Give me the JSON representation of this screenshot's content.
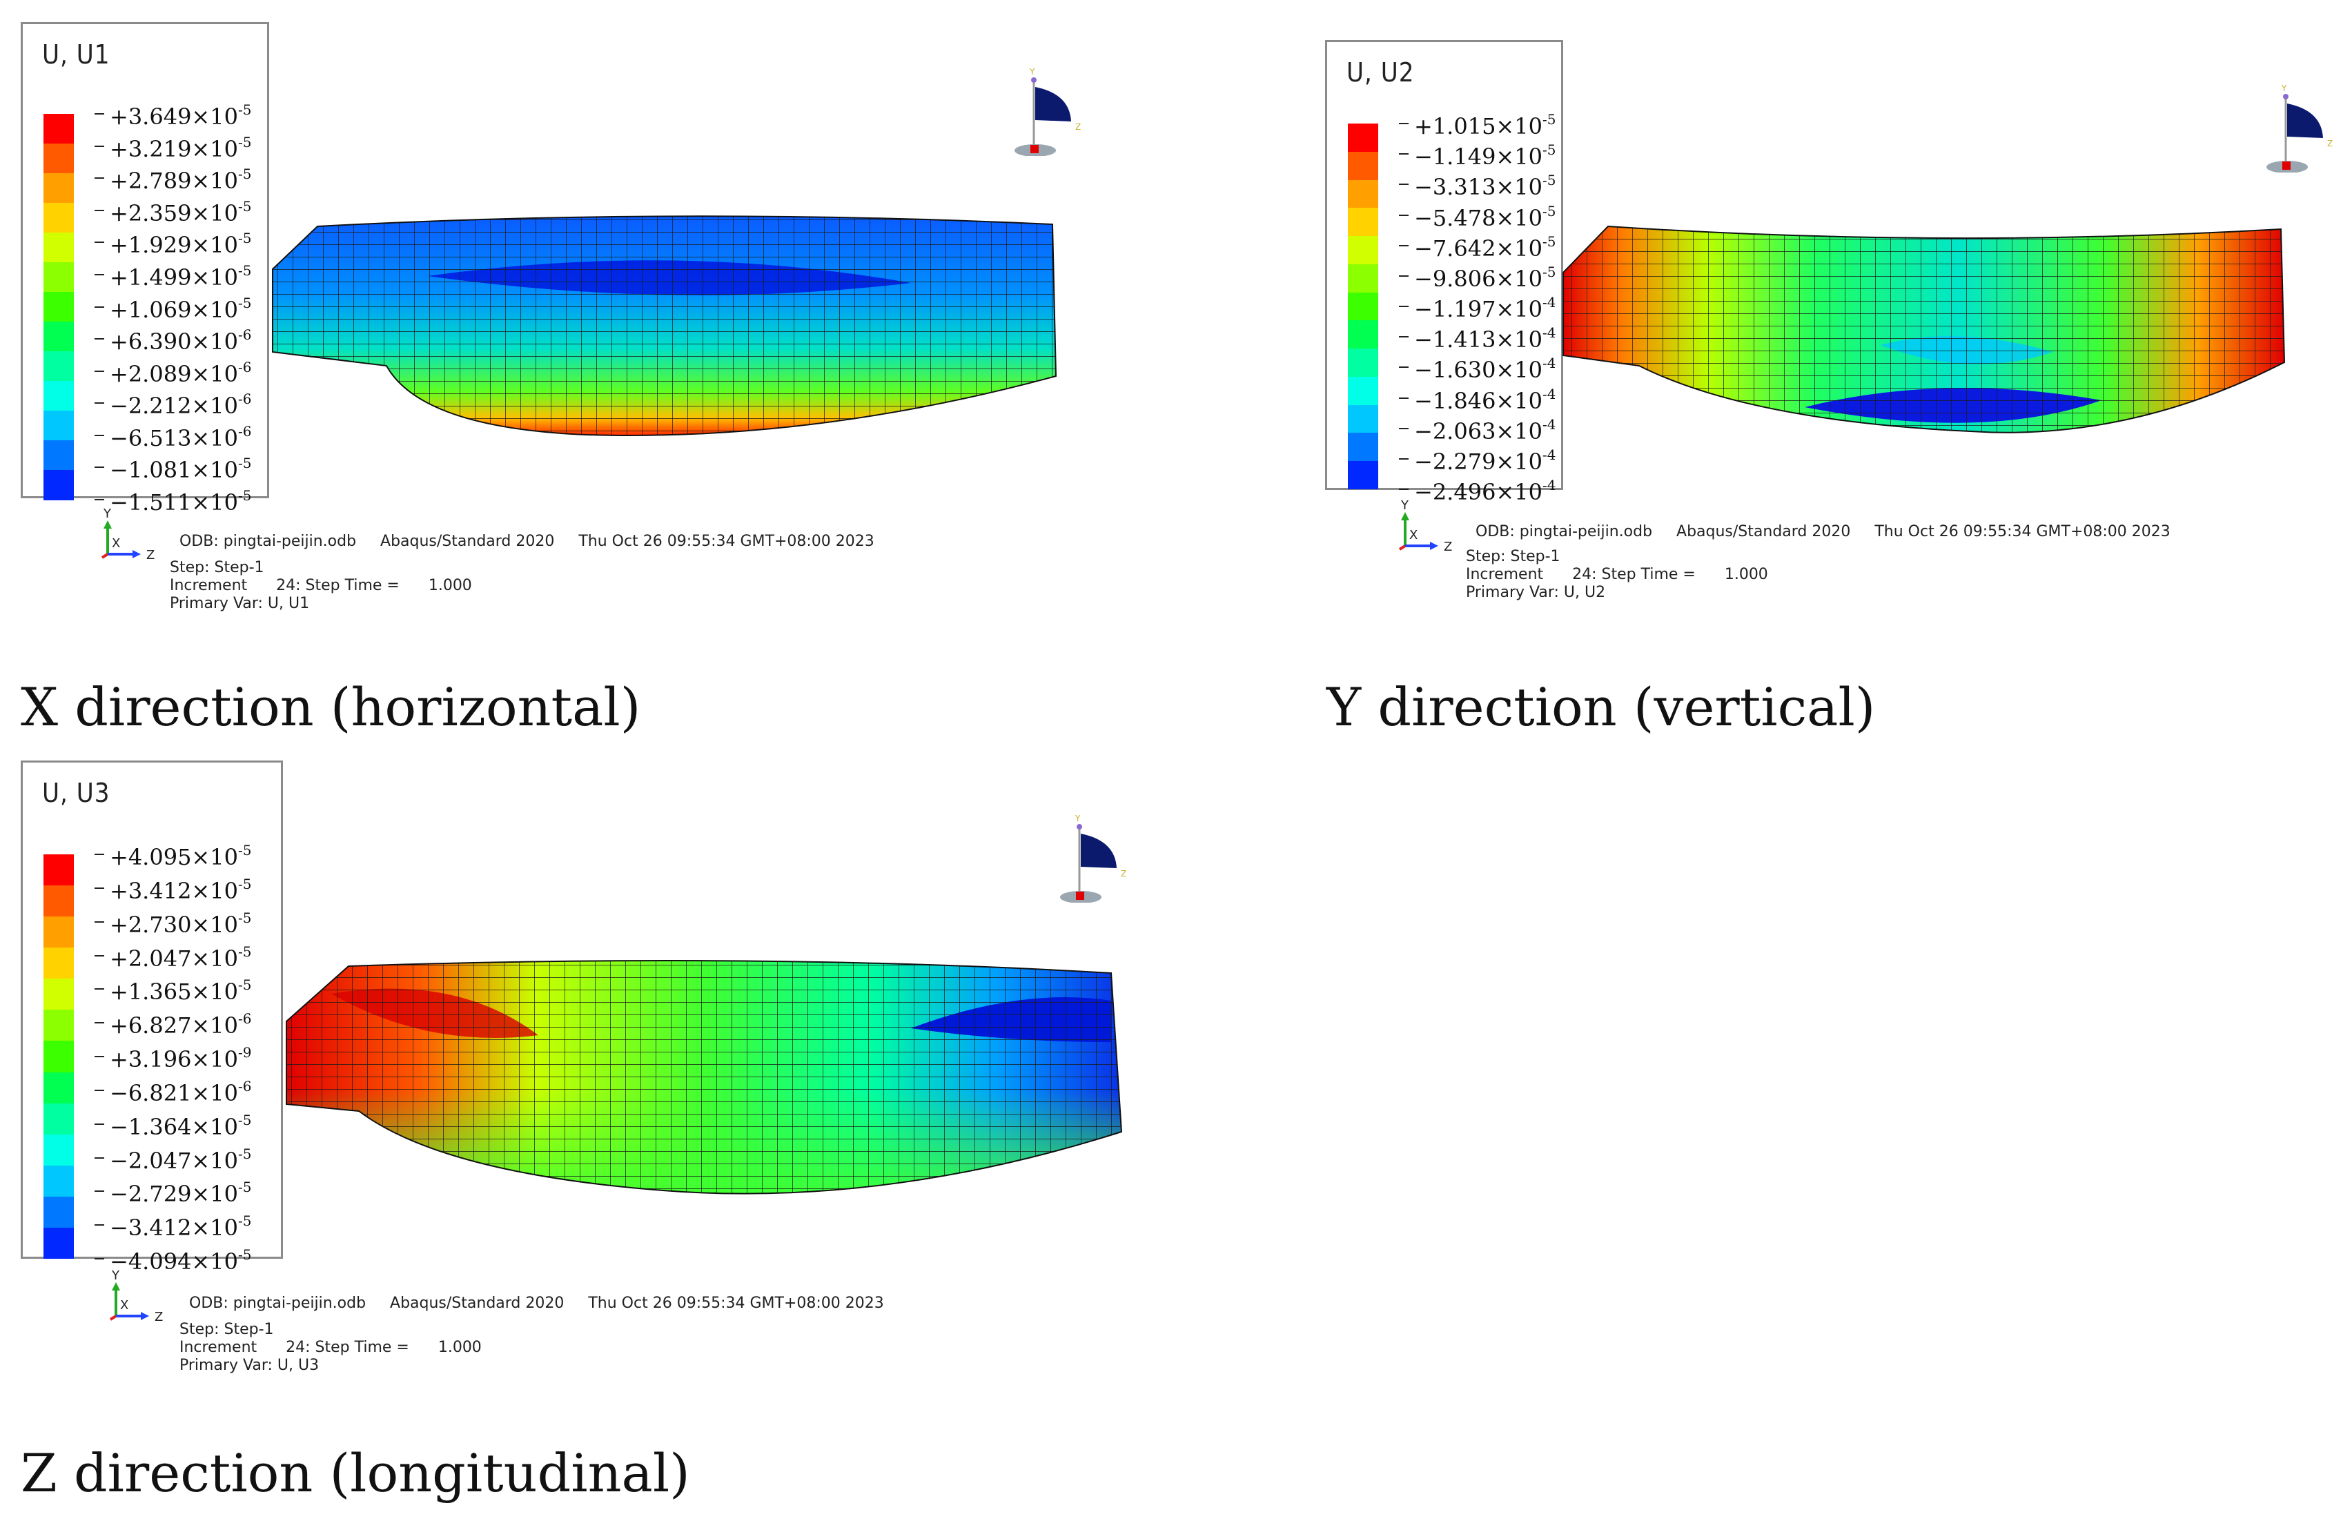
{
  "panels": [
    {
      "id": "u1",
      "legend_title": "U, U1",
      "colors": [
        "#ff0000",
        "#ff5a00",
        "#ffa000",
        "#ffd200",
        "#d2ff00",
        "#8cff00",
        "#3cff00",
        "#00ff50",
        "#00ffa0",
        "#00ffe6",
        "#00c8ff",
        "#0078ff",
        "#0028ff"
      ],
      "labels": [
        {
          "m": "+3.649",
          "e": "-5"
        },
        {
          "m": "+3.219",
          "e": "-5"
        },
        {
          "m": "+2.789",
          "e": "-5"
        },
        {
          "m": "+2.359",
          "e": "-5"
        },
        {
          "m": "+1.929",
          "e": "-5"
        },
        {
          "m": "+1.499",
          "e": "-5"
        },
        {
          "m": "+1.069",
          "e": "-5"
        },
        {
          "m": "+6.390",
          "e": "-6"
        },
        {
          "m": "+2.089",
          "e": "-6"
        },
        {
          "m": "−2.212",
          "e": "-6"
        },
        {
          "m": "−6.513",
          "e": "-6"
        },
        {
          "m": "−1.081",
          "e": "-5"
        },
        {
          "m": "−1.511",
          "e": "-5"
        }
      ],
      "info": {
        "odb": "ODB: pingtai-peijin.odb",
        "solver": "Abaqus/Standard 2020",
        "date": "Thu Oct 26 09:55:34 GMT+08:00 2023",
        "step": "Step: Step-1",
        "increment": "Increment      24: Step Time =      1.000",
        "primary": "Primary Var: U, U1"
      },
      "caption": "X direction (horizontal)"
    },
    {
      "id": "u2",
      "legend_title": "U, U2",
      "colors": [
        "#ff0000",
        "#ff5a00",
        "#ffa000",
        "#ffd200",
        "#d2ff00",
        "#8cff00",
        "#3cff00",
        "#00ff50",
        "#00ffa0",
        "#00ffe6",
        "#00c8ff",
        "#0078ff",
        "#0028ff"
      ],
      "labels": [
        {
          "m": "+1.015",
          "e": "-5"
        },
        {
          "m": "−1.149",
          "e": "-5"
        },
        {
          "m": "−3.313",
          "e": "-5"
        },
        {
          "m": "−5.478",
          "e": "-5"
        },
        {
          "m": "−7.642",
          "e": "-5"
        },
        {
          "m": "−9.806",
          "e": "-5"
        },
        {
          "m": "−1.197",
          "e": "-4"
        },
        {
          "m": "−1.413",
          "e": "-4"
        },
        {
          "m": "−1.630",
          "e": "-4"
        },
        {
          "m": "−1.846",
          "e": "-4"
        },
        {
          "m": "−2.063",
          "e": "-4"
        },
        {
          "m": "−2.279",
          "e": "-4"
        },
        {
          "m": "−2.496",
          "e": "-4"
        }
      ],
      "info": {
        "odb": "ODB: pingtai-peijin.odb",
        "solver": "Abaqus/Standard 2020",
        "date": "Thu Oct 26 09:55:34 GMT+08:00 2023",
        "step": "Step: Step-1",
        "increment": "Increment      24: Step Time =      1.000",
        "primary": "Primary Var: U, U2"
      },
      "caption": "Y direction (vertical)"
    },
    {
      "id": "u3",
      "legend_title": "U, U3",
      "colors": [
        "#ff0000",
        "#ff5a00",
        "#ffa000",
        "#ffd200",
        "#d2ff00",
        "#8cff00",
        "#3cff00",
        "#00ff50",
        "#00ffa0",
        "#00ffe6",
        "#00c8ff",
        "#0078ff",
        "#0028ff"
      ],
      "labels": [
        {
          "m": "+4.095",
          "e": "-5"
        },
        {
          "m": "+3.412",
          "e": "-5"
        },
        {
          "m": "+2.730",
          "e": "-5"
        },
        {
          "m": "+2.047",
          "e": "-5"
        },
        {
          "m": "+1.365",
          "e": "-5"
        },
        {
          "m": "+6.827",
          "e": "-6"
        },
        {
          "m": "+3.196",
          "e": "-9"
        },
        {
          "m": "−6.821",
          "e": "-6"
        },
        {
          "m": "−1.364",
          "e": "-5"
        },
        {
          "m": "−2.047",
          "e": "-5"
        },
        {
          "m": "−2.729",
          "e": "-5"
        },
        {
          "m": "−3.412",
          "e": "-5"
        },
        {
          "m": "−4.094",
          "e": "-5"
        }
      ],
      "info": {
        "odb": "ODB: pingtai-peijin.odb",
        "solver": "Abaqus/Standard 2020",
        "date": "Thu Oct 26 09:55:34 GMT+08:00 2023",
        "step": "Step: Step-1",
        "increment": "Increment      24: Step Time =      1.000",
        "primary": "Primary Var: U, U3"
      },
      "caption": "Z direction (longitudinal)"
    }
  ],
  "axes": {
    "y": "Y",
    "x": "X",
    "z": "Z"
  },
  "compass_axes": {
    "y": "Y",
    "z": "Z"
  }
}
